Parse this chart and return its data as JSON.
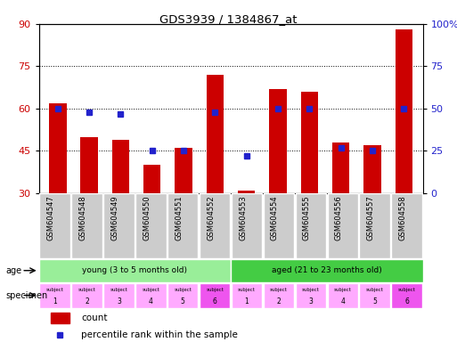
{
  "title": "GDS3939 / 1384867_at",
  "samples": [
    "GSM604547",
    "GSM604548",
    "GSM604549",
    "GSM604550",
    "GSM604551",
    "GSM604552",
    "GSM604553",
    "GSM604554",
    "GSM604555",
    "GSM604556",
    "GSM604557",
    "GSM604558"
  ],
  "counts": [
    62,
    50,
    49,
    40,
    46,
    72,
    31,
    67,
    66,
    48,
    47,
    88
  ],
  "percentile_ranks": [
    50,
    48,
    47,
    25,
    25,
    48,
    22,
    50,
    50,
    27,
    25,
    50
  ],
  "ylim_left": [
    30,
    90
  ],
  "ylim_right": [
    0,
    100
  ],
  "yticks_left": [
    30,
    45,
    60,
    75,
    90
  ],
  "yticks_right": [
    0,
    25,
    50,
    75,
    100
  ],
  "ytick_labels_right": [
    "0",
    "25",
    "50",
    "75",
    "100%"
  ],
  "hlines": [
    45,
    60,
    75
  ],
  "bar_color": "#cc0000",
  "dot_color": "#2222cc",
  "bar_bottom": 30,
  "age_groups": [
    {
      "label": "young (3 to 5 months old)",
      "start": 0,
      "end": 6,
      "color": "#99ee99"
    },
    {
      "label": "aged (21 to 23 months old)",
      "start": 6,
      "end": 12,
      "color": "#44cc44"
    }
  ],
  "specimen_colors_light": "#ffaaff",
  "specimen_colors_dark": "#ee55ee",
  "specimen_dark_indices": [
    5,
    11
  ],
  "tick_label_color": "#cc0000",
  "right_tick_color": "#2222cc",
  "plot_bg_color": "#ffffff",
  "label_bg_color": "#cccccc",
  "fig_bg_color": "#ffffff"
}
